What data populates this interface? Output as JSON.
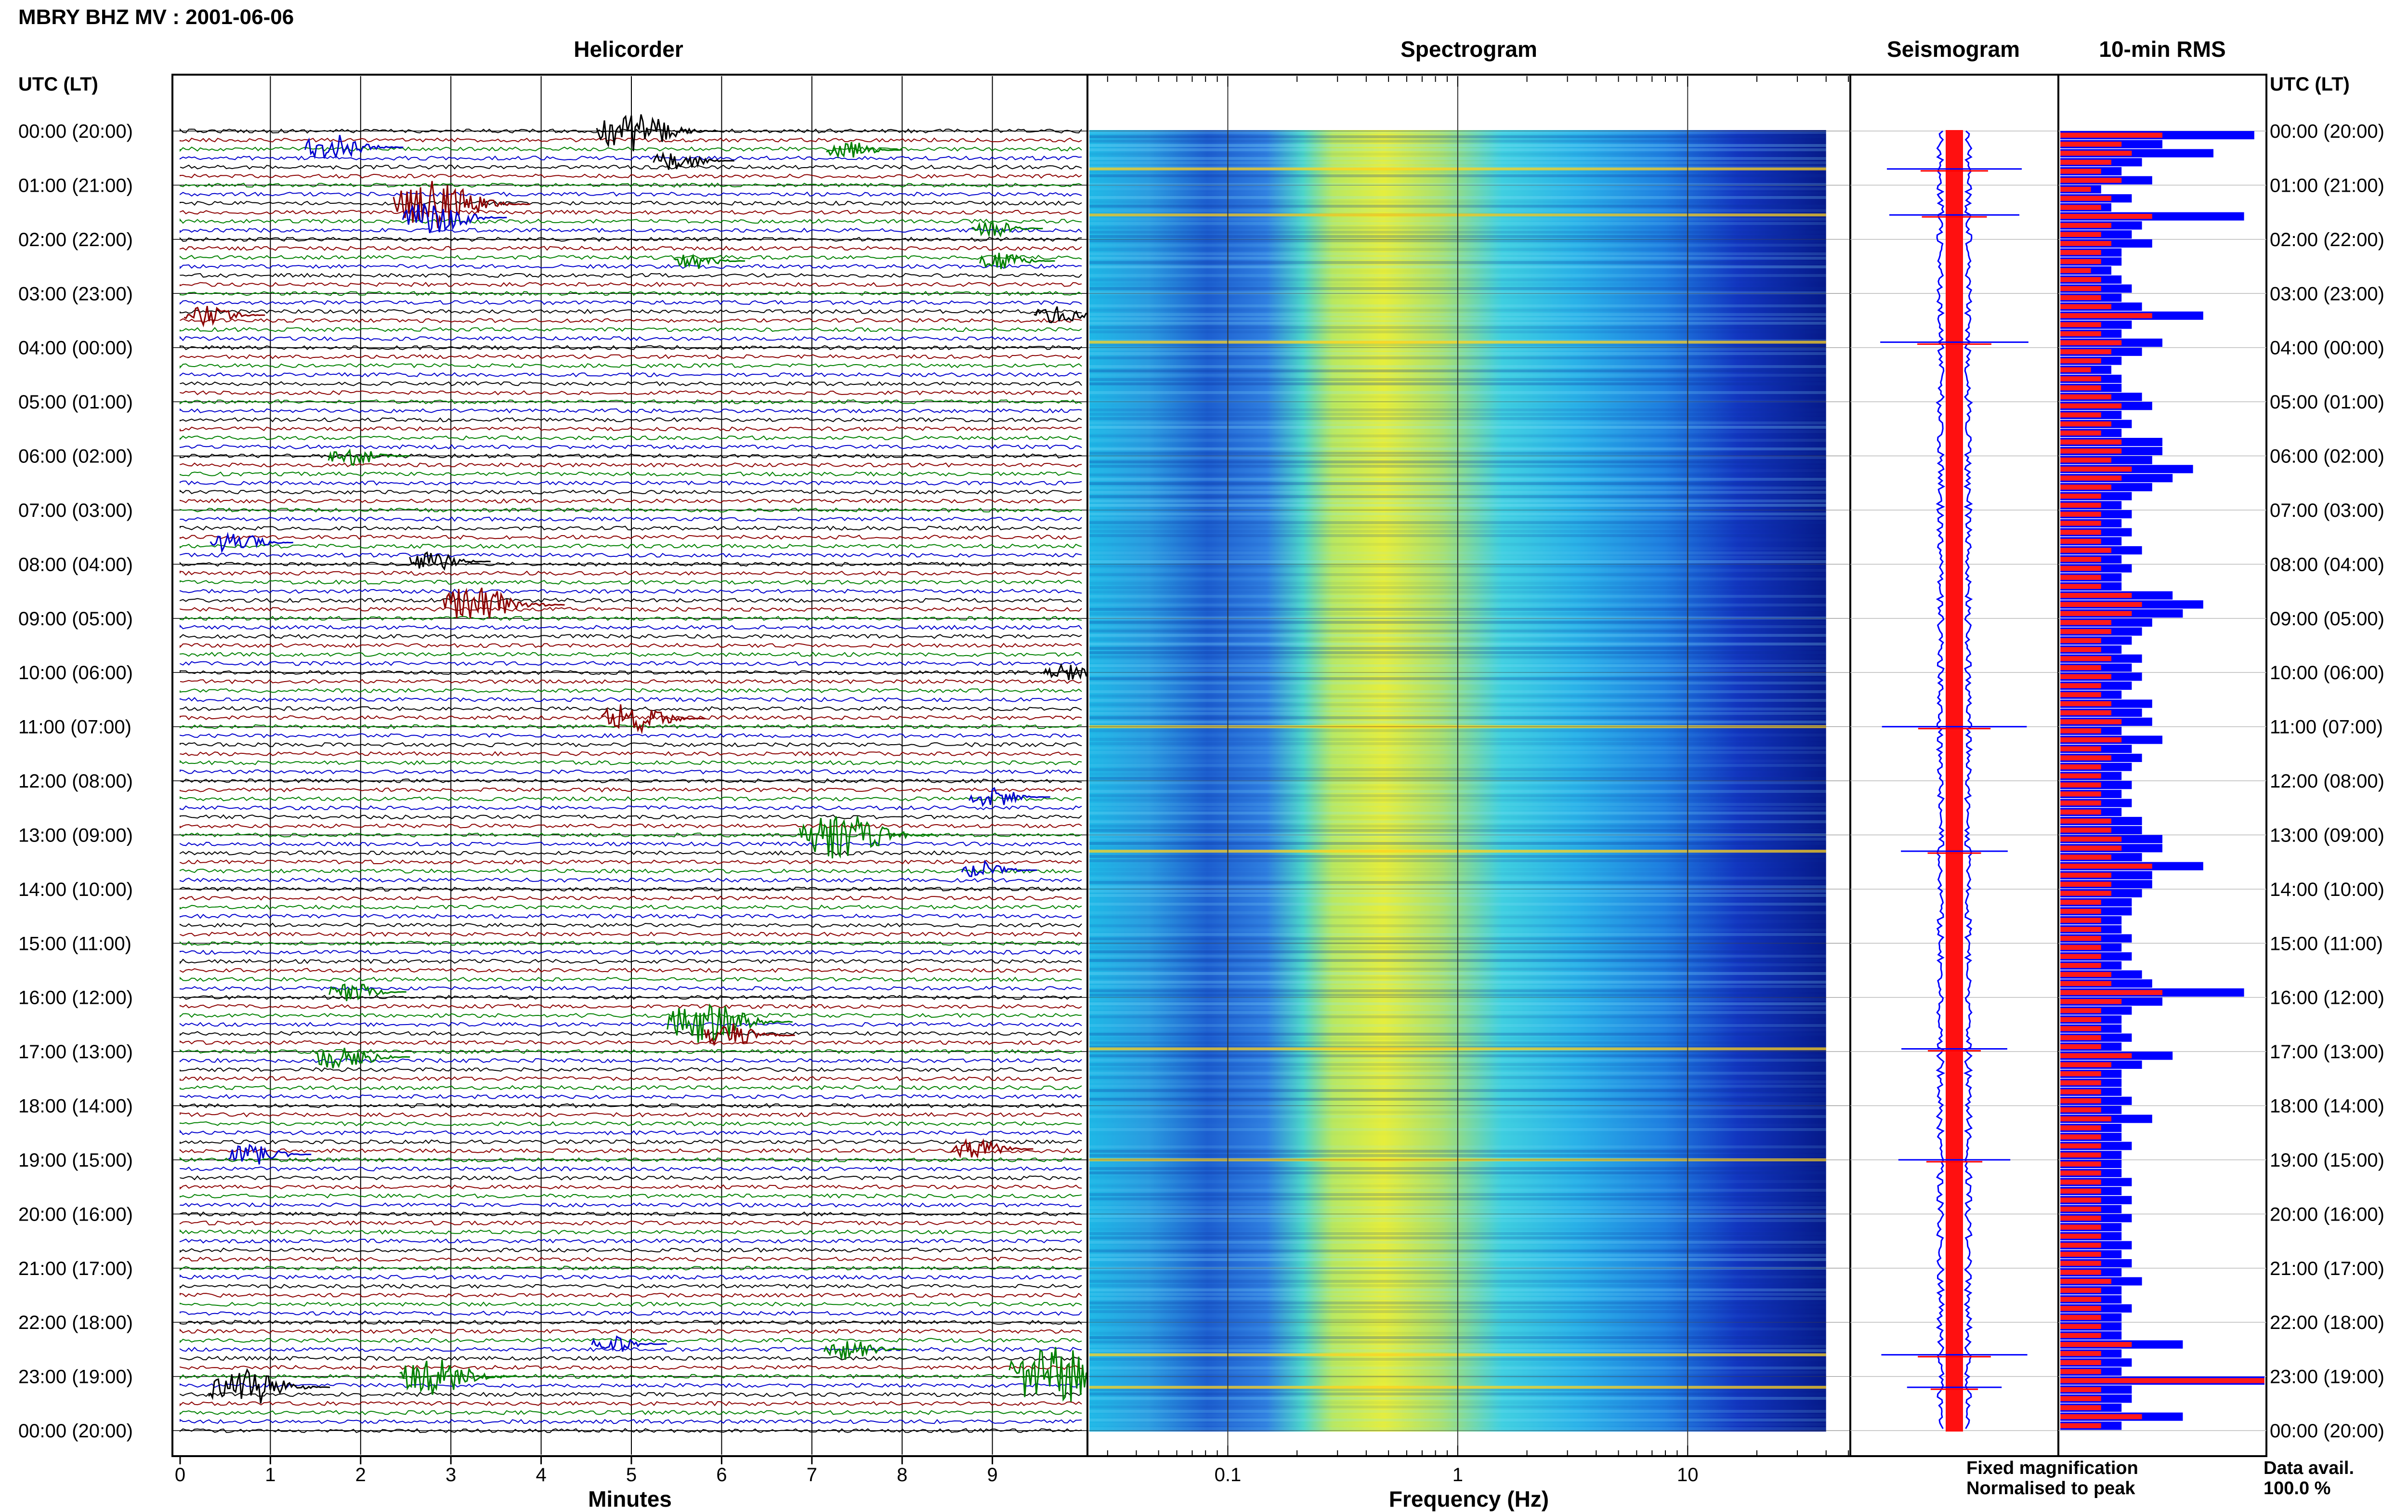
{
  "header": {
    "title": "MBRY BHZ MV : 2001-06-06",
    "panel_titles": [
      "Helicorder",
      "Spectrogram",
      "Seismogram",
      "10-min RMS"
    ],
    "time_axis_label": "UTC (LT)"
  },
  "time_labels": [
    "00:00 (20:00)",
    "01:00 (21:00)",
    "02:00 (22:00)",
    "03:00 (23:00)",
    "04:00 (00:00)",
    "05:00 (01:00)",
    "06:00 (02:00)",
    "07:00 (03:00)",
    "08:00 (04:00)",
    "09:00 (05:00)",
    "10:00 (06:00)",
    "11:00 (07:00)",
    "12:00 (08:00)",
    "13:00 (09:00)",
    "14:00 (10:00)",
    "15:00 (11:00)",
    "16:00 (12:00)",
    "17:00 (13:00)",
    "18:00 (14:00)",
    "19:00 (15:00)",
    "20:00 (16:00)",
    "21:00 (17:00)",
    "22:00 (18:00)",
    "23:00 (19:00)",
    "00:00 (20:00)"
  ],
  "helicorder": {
    "xlabel": "Minutes",
    "ticks": [
      "0",
      "1",
      "2",
      "3",
      "4",
      "5",
      "6",
      "7",
      "8",
      "9"
    ],
    "xlim": [
      0,
      10
    ],
    "trace_colors": [
      "#000000",
      "#8b0000",
      "#008000",
      "#0000cd"
    ],
    "events": [
      {
        "hour": 0.0,
        "minute": 5.0,
        "amp": 3.0,
        "color": "#000000"
      },
      {
        "hour": 0.3,
        "minute": 1.7,
        "amp": 2.2,
        "color": "#0000cd"
      },
      {
        "hour": 0.55,
        "minute": 5.5,
        "amp": 1.5,
        "color": "#000000"
      },
      {
        "hour": 0.35,
        "minute": 7.4,
        "amp": 1.3,
        "color": "#008000"
      },
      {
        "hour": 1.35,
        "minute": 2.8,
        "amp": 3.6,
        "color": "#8b0000"
      },
      {
        "hour": 1.6,
        "minute": 2.8,
        "amp": 2.4,
        "color": "#0000cd"
      },
      {
        "hour": 1.8,
        "minute": 9.0,
        "amp": 1.2,
        "color": "#008000"
      },
      {
        "hour": 2.4,
        "minute": 5.7,
        "amp": 1.2,
        "color": "#008000"
      },
      {
        "hour": 2.4,
        "minute": 9.1,
        "amp": 1.3,
        "color": "#008000"
      },
      {
        "hour": 3.4,
        "minute": 0.3,
        "amp": 1.5,
        "color": "#8b0000"
      },
      {
        "hour": 3.4,
        "minute": 9.7,
        "amp": 1.3,
        "color": "#000000"
      },
      {
        "hour": 6.0,
        "minute": 1.9,
        "amp": 1.5,
        "color": "#008000"
      },
      {
        "hour": 7.6,
        "minute": 0.6,
        "amp": 1.6,
        "color": "#0000cd"
      },
      {
        "hour": 7.95,
        "minute": 2.8,
        "amp": 1.5,
        "color": "#000000"
      },
      {
        "hour": 8.75,
        "minute": 3.3,
        "amp": 3.0,
        "color": "#8b0000"
      },
      {
        "hour": 10.0,
        "minute": 9.8,
        "amp": 1.2,
        "color": "#000000"
      },
      {
        "hour": 10.85,
        "minute": 5.0,
        "amp": 2.4,
        "color": "#8b0000"
      },
      {
        "hour": 12.3,
        "minute": 9.0,
        "amp": 1.5,
        "color": "#0000cd"
      },
      {
        "hour": 13.0,
        "minute": 7.3,
        "amp": 3.6,
        "color": "#008000"
      },
      {
        "hour": 13.65,
        "minute": 8.9,
        "amp": 1.3,
        "color": "#0000cd"
      },
      {
        "hour": 15.9,
        "minute": 1.9,
        "amp": 1.4,
        "color": "#008000"
      },
      {
        "hour": 16.45,
        "minute": 5.8,
        "amp": 3.2,
        "color": "#008000"
      },
      {
        "hour": 16.7,
        "minute": 6.1,
        "amp": 1.9,
        "color": "#8b0000"
      },
      {
        "hour": 17.1,
        "minute": 1.8,
        "amp": 2.0,
        "color": "#008000"
      },
      {
        "hour": 18.9,
        "minute": 0.8,
        "amp": 1.6,
        "color": "#0000cd"
      },
      {
        "hour": 18.8,
        "minute": 8.8,
        "amp": 1.6,
        "color": "#8b0000"
      },
      {
        "hour": 22.4,
        "minute": 4.8,
        "amp": 1.3,
        "color": "#0000cd"
      },
      {
        "hour": 22.5,
        "minute": 7.4,
        "amp": 1.6,
        "color": "#008000"
      },
      {
        "hour": 23.2,
        "minute": 0.7,
        "amp": 3.0,
        "color": "#000000"
      },
      {
        "hour": 23.0,
        "minute": 2.8,
        "amp": 2.8,
        "color": "#008000"
      },
      {
        "hour": 23.0,
        "minute": 9.7,
        "amp": 4.5,
        "color": "#008000"
      }
    ]
  },
  "spectrogram": {
    "xlabel": "Frequency (Hz)",
    "scale": "log",
    "xlim": [
      0.025,
      50
    ],
    "data_max": 40,
    "ticks": [
      {
        "value": 0.1,
        "label": "0.1"
      },
      {
        "value": 1,
        "label": "1"
      },
      {
        "value": 10,
        "label": "10"
      }
    ]
  },
  "seismogram": {
    "spike_hours": [
      0.7,
      1.55,
      3.9,
      11.0,
      13.3,
      16.95,
      19.0,
      22.6,
      23.2
    ]
  },
  "rms": {
    "blue_values": [
      0.95,
      0.5,
      0.75,
      0.4,
      0.3,
      0.45,
      0.2,
      0.35,
      0.25,
      0.9,
      0.4,
      0.35,
      0.45,
      0.3,
      0.3,
      0.25,
      0.3,
      0.35,
      0.3,
      0.4,
      0.7,
      0.35,
      0.3,
      0.5,
      0.4,
      0.3,
      0.25,
      0.3,
      0.3,
      0.4,
      0.45,
      0.3,
      0.35,
      0.3,
      0.5,
      0.5,
      0.45,
      0.65,
      0.55,
      0.45,
      0.35,
      0.3,
      0.35,
      0.3,
      0.35,
      0.3,
      0.4,
      0.3,
      0.35,
      0.3,
      0.3,
      0.55,
      0.7,
      0.6,
      0.45,
      0.4,
      0.35,
      0.3,
      0.4,
      0.35,
      0.4,
      0.35,
      0.3,
      0.45,
      0.4,
      0.45,
      0.3,
      0.5,
      0.35,
      0.4,
      0.35,
      0.3,
      0.35,
      0.3,
      0.35,
      0.3,
      0.4,
      0.4,
      0.5,
      0.5,
      0.4,
      0.7,
      0.45,
      0.45,
      0.4,
      0.35,
      0.35,
      0.3,
      0.3,
      0.35,
      0.3,
      0.35,
      0.3,
      0.4,
      0.45,
      0.9,
      0.5,
      0.35,
      0.3,
      0.3,
      0.35,
      0.3,
      0.55,
      0.4,
      0.3,
      0.3,
      0.3,
      0.35,
      0.3,
      0.45,
      0.3,
      0.3,
      0.35,
      0.3,
      0.3,
      0.3,
      0.35,
      0.3,
      0.35,
      0.3,
      0.35,
      0.3,
      0.3,
      0.35,
      0.3,
      0.35,
      0.3,
      0.4,
      0.3,
      0.3,
      0.35,
      0.3,
      0.3,
      0.3,
      0.6,
      0.3,
      0.35,
      0.3,
      1.0,
      0.35,
      0.35,
      0.3,
      0.6,
      0.3
    ],
    "red_values": [
      0.5,
      0.3,
      0.35,
      0.25,
      0.2,
      0.3,
      0.15,
      0.25,
      0.2,
      0.45,
      0.25,
      0.2,
      0.25,
      0.2,
      0.2,
      0.15,
      0.2,
      0.2,
      0.2,
      0.25,
      0.45,
      0.2,
      0.2,
      0.3,
      0.25,
      0.2,
      0.15,
      0.2,
      0.2,
      0.25,
      0.3,
      0.2,
      0.25,
      0.2,
      0.3,
      0.3,
      0.25,
      0.35,
      0.3,
      0.25,
      0.2,
      0.2,
      0.2,
      0.2,
      0.2,
      0.2,
      0.25,
      0.2,
      0.2,
      0.2,
      0.2,
      0.35,
      0.4,
      0.35,
      0.25,
      0.25,
      0.2,
      0.2,
      0.25,
      0.2,
      0.25,
      0.2,
      0.2,
      0.25,
      0.25,
      0.3,
      0.2,
      0.3,
      0.2,
      0.25,
      0.2,
      0.2,
      0.2,
      0.2,
      0.2,
      0.2,
      0.25,
      0.25,
      0.3,
      0.3,
      0.25,
      0.45,
      0.25,
      0.25,
      0.25,
      0.2,
      0.2,
      0.2,
      0.2,
      0.2,
      0.2,
      0.2,
      0.2,
      0.25,
      0.25,
      0.5,
      0.3,
      0.2,
      0.2,
      0.2,
      0.2,
      0.2,
      0.35,
      0.25,
      0.2,
      0.2,
      0.2,
      0.2,
      0.2,
      0.25,
      0.2,
      0.2,
      0.2,
      0.2,
      0.2,
      0.2,
      0.2,
      0.2,
      0.2,
      0.2,
      0.2,
      0.2,
      0.2,
      0.2,
      0.2,
      0.2,
      0.2,
      0.25,
      0.2,
      0.2,
      0.2,
      0.2,
      0.2,
      0.2,
      0.35,
      0.2,
      0.2,
      0.2,
      1.0,
      0.2,
      0.2,
      0.2,
      0.4,
      0.2
    ]
  },
  "legend": {
    "fixed_label": "Fixed magnification",
    "fixed_color": "#0000ff",
    "normalised_label": "Normalised to peak",
    "normalised_color": "#ff0000",
    "data_avail_label": "Data avail.",
    "data_avail_value": "100.0 %"
  },
  "chart_data": [
    {
      "type": "line",
      "title": "Helicorder",
      "xlabel": "Minutes",
      "ylabel": "UTC (LT)",
      "xlim": [
        0,
        10
      ],
      "grid": true
    },
    {
      "type": "heatmap",
      "title": "Spectrogram",
      "xlabel": "Frequency (Hz)",
      "x_scale": "log",
      "xlim": [
        0.025,
        50
      ]
    },
    {
      "type": "line",
      "title": "Seismogram",
      "series": [
        {
          "name": "Fixed magnification",
          "color": "#0000ff"
        },
        {
          "name": "Normalised to peak",
          "color": "#ff0000"
        }
      ]
    },
    {
      "type": "bar",
      "title": "10-min RMS",
      "orientation": "horizontal",
      "series": [
        {
          "name": "Fixed magnification",
          "color": "#0000ff"
        },
        {
          "name": "Normalised to peak",
          "color": "#ff0000"
        }
      ]
    }
  ]
}
